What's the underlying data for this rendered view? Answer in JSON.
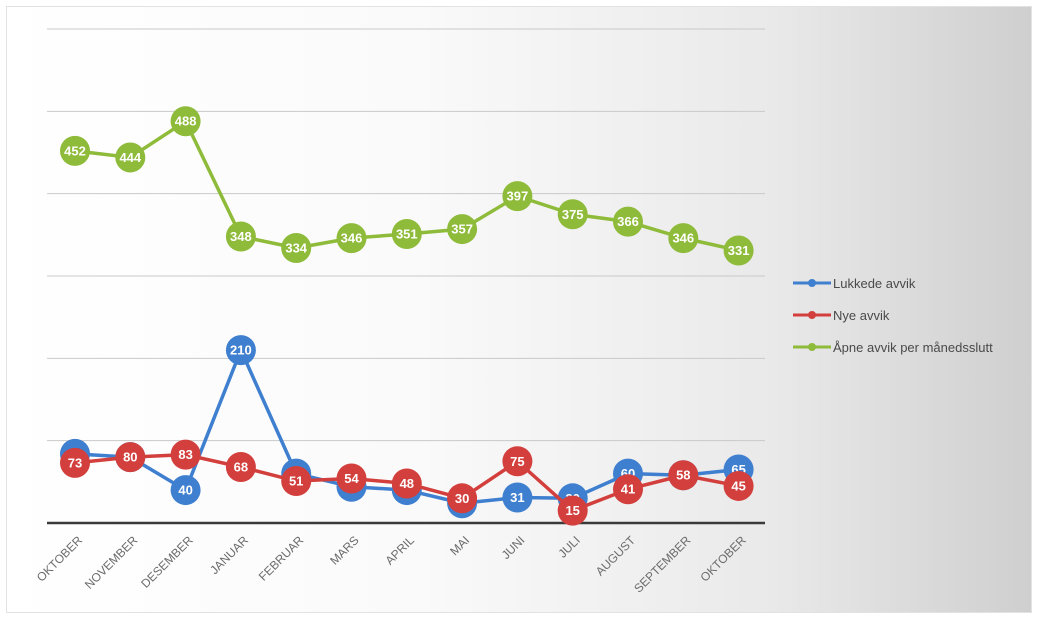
{
  "chart_data": {
    "type": "line",
    "title": "",
    "xlabel": "",
    "ylabel": "",
    "ylim": [
      0,
      600
    ],
    "grid": true,
    "legend_position": "right",
    "categories": [
      "OKTOBER",
      "NOVEMBER",
      "DESEMBER",
      "JANUAR",
      "FEBRUAR",
      "MARS",
      "APRIL",
      "MAI",
      "JUNI",
      "JULI",
      "AUGUST",
      "SEPTEMBER",
      "OKTOBER"
    ],
    "series": [
      {
        "name": "Lukkede avvik",
        "color": "#3f7fcf",
        "values": [
          84,
          80,
          40,
          210,
          60,
          44,
          40,
          24,
          31,
          30,
          60,
          58,
          65
        ],
        "labels": [
          "84",
          "80",
          "40",
          "210",
          "60",
          "44",
          "40",
          "24",
          "31",
          "30",
          "60",
          "58",
          "65"
        ]
      },
      {
        "name": "Nye avvik",
        "color": "#d23f3c",
        "values": [
          73,
          80,
          83,
          68,
          51,
          54,
          48,
          30,
          75,
          15,
          41,
          58,
          45
        ],
        "labels": [
          "73",
          "80",
          "83",
          "68",
          "51",
          "54",
          "48",
          "30",
          "75",
          "15",
          "41",
          "58",
          "45"
        ]
      },
      {
        "name": "Åpne avvik per månedsslutt",
        "color": "#8fbb3a",
        "values": [
          452,
          444,
          488,
          348,
          334,
          346,
          351,
          357,
          397,
          375,
          366,
          346,
          331
        ],
        "labels": [
          "452",
          "444",
          "488",
          "348",
          "334",
          "346",
          "351",
          "357",
          "397",
          "375",
          "366",
          "346",
          "331"
        ]
      }
    ]
  }
}
